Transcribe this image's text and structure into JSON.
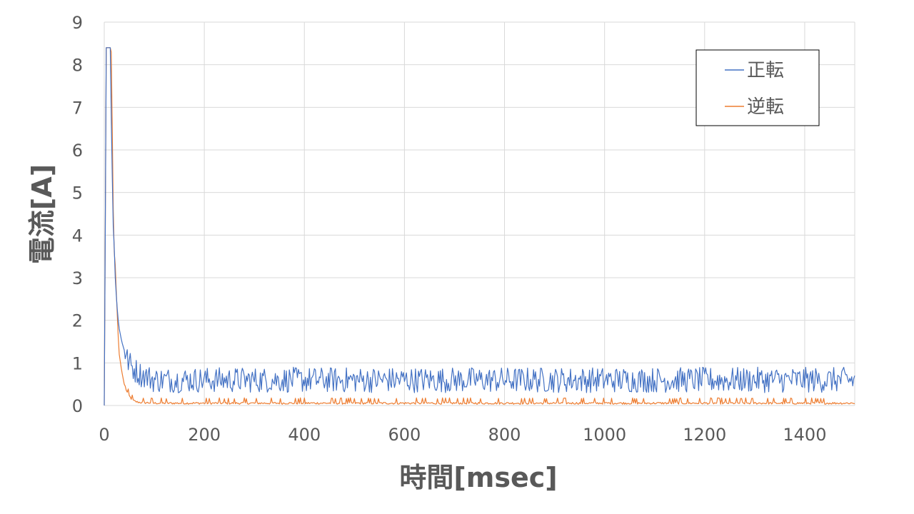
{
  "chart_data": {
    "type": "line",
    "xlabel": "時間[msec]",
    "ylabel": "電流[A]",
    "xlim": [
      0,
      1500
    ],
    "ylim": [
      0,
      9
    ],
    "x_ticks": [
      0,
      200,
      400,
      600,
      800,
      1000,
      1200,
      1400
    ],
    "y_ticks": [
      0,
      1,
      2,
      3,
      4,
      5,
      6,
      7,
      8,
      9
    ],
    "grid": true,
    "legend_position": "top-right",
    "x": [
      0,
      1,
      2,
      3,
      4,
      5,
      8,
      10,
      12,
      14,
      16,
      18,
      20,
      22,
      25,
      28,
      30,
      35,
      40,
      45,
      50,
      55,
      60,
      65,
      70,
      80,
      90,
      100,
      150,
      200,
      300,
      400,
      500,
      600,
      700,
      800,
      900,
      1000,
      1100,
      1200,
      1300,
      1400,
      1500
    ],
    "series": [
      {
        "name": "正転",
        "color": "#4472C4",
        "noise": 0.3,
        "values": [
          0,
          1.0,
          4.0,
          8.4,
          8.4,
          8.4,
          8.4,
          8.4,
          8.4,
          6.8,
          5.4,
          4.2,
          3.7,
          3.0,
          2.4,
          2.0,
          1.8,
          1.5,
          1.3,
          1.1,
          1.0,
          0.9,
          0.85,
          0.8,
          0.75,
          0.7,
          0.65,
          0.6,
          0.6,
          0.6,
          0.6,
          0.6,
          0.6,
          0.6,
          0.6,
          0.6,
          0.6,
          0.6,
          0.6,
          0.6,
          0.6,
          0.6,
          0.6
        ]
      },
      {
        "name": "逆転",
        "color": "#ED7D31",
        "noise": 0.1,
        "values": [
          0,
          1.0,
          4.0,
          8.4,
          8.4,
          8.4,
          8.4,
          8.4,
          8.4,
          8.3,
          6.5,
          4.6,
          3.6,
          3.3,
          2.4,
          1.6,
          1.2,
          0.8,
          0.5,
          0.3,
          0.2,
          0.12,
          0.08,
          0.06,
          0.05,
          0.04,
          0.04,
          0.03,
          0.03,
          0.03,
          0.03,
          0.03,
          0.03,
          0.03,
          0.03,
          0.03,
          0.03,
          0.03,
          0.03,
          0.03,
          0.03,
          0.03,
          0.03
        ]
      }
    ]
  }
}
